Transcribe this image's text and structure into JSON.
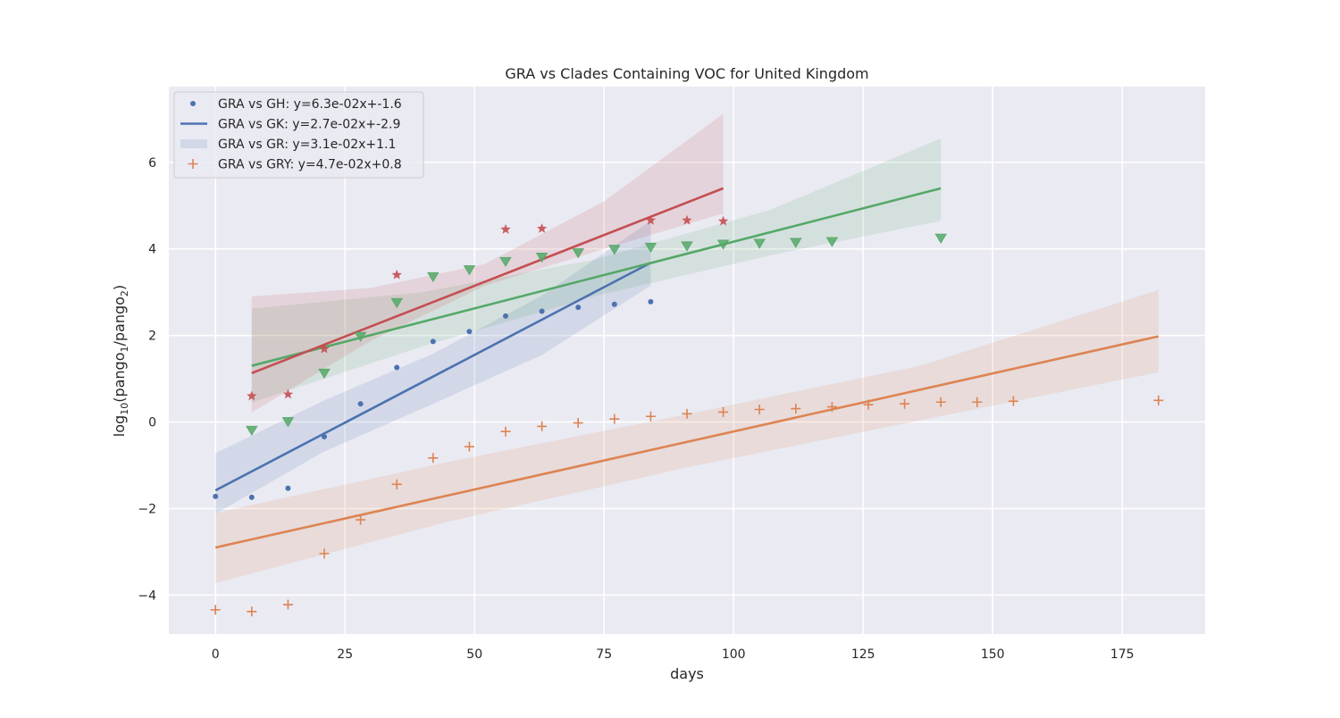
{
  "chart_data": {
    "type": "scatter",
    "title": "GRA vs Clades Containing VOC for United Kingdom",
    "xlabel": "days",
    "ylabel": {
      "prefix": "log",
      "sub": "10",
      "open": "(pango",
      "sub1": "1",
      "slash": "/pango",
      "sub2": "2",
      "close": ")"
    },
    "xlim": [
      -9,
      191
    ],
    "ylim": [
      -4.9,
      7.75
    ],
    "x_ticks": [
      0,
      25,
      50,
      75,
      100,
      125,
      150,
      175
    ],
    "y_ticks": [
      -4,
      -2,
      0,
      2,
      4,
      6
    ],
    "y_tick_labels": [
      "−4",
      "−2",
      "0",
      "2",
      "4",
      "6"
    ],
    "grid": true,
    "legend_position": "top-left",
    "legend": [
      {
        "label": "GRA vs GH: y=6.3e-02x+-1.6",
        "marker": "dot",
        "color": "#4c72b0"
      },
      {
        "label": "GRA vs GK: y=2.7e-02x+-2.9",
        "marker": "line",
        "color": "#4c72b0"
      },
      {
        "label": "GRA vs GR: y=3.1e-02x+1.1",
        "marker": "band",
        "color": "#4c72b0"
      },
      {
        "label": "GRA vs GRY: y=4.7e-02x+0.8",
        "marker": "plus",
        "color": "#dd8452"
      }
    ],
    "series": [
      {
        "color": "#4c72b0",
        "marker": "dot",
        "x": [
          0,
          7,
          14,
          21,
          28,
          35,
          42,
          49,
          56,
          63,
          70,
          77,
          84
        ],
        "y": [
          -1.72,
          -1.74,
          -1.53,
          -0.34,
          0.42,
          1.26,
          1.86,
          2.09,
          2.45,
          2.56,
          2.65,
          2.72,
          2.78
        ],
        "fit": {
          "x": [
            0,
            84
          ],
          "y": [
            -1.58,
            3.68
          ]
        },
        "band": {
          "x": [
            0,
            21,
            42,
            63,
            84
          ],
          "upper": [
            -0.72,
            0.5,
            1.58,
            2.92,
            4.65
          ],
          "lower": [
            -2.12,
            -0.68,
            0.42,
            1.55,
            3.15
          ]
        }
      },
      {
        "color": "#dd8452",
        "marker": "plus",
        "x": [
          0,
          7,
          14,
          21,
          28,
          35,
          42,
          49,
          56,
          63,
          70,
          77,
          84,
          91,
          98,
          105,
          112,
          119,
          126,
          133,
          140,
          147,
          154,
          182
        ],
        "y": [
          -4.34,
          -4.38,
          -4.22,
          -3.04,
          -2.26,
          -1.44,
          -0.83,
          -0.57,
          -0.22,
          -0.1,
          -0.02,
          0.07,
          0.13,
          0.19,
          0.23,
          0.29,
          0.31,
          0.35,
          0.4,
          0.42,
          0.46,
          0.46,
          0.48,
          0.5
        ],
        "fit": {
          "x": [
            0,
            182
          ],
          "y": [
            -2.9,
            1.98
          ]
        },
        "band": {
          "x": [
            0,
            45,
            91,
            136,
            182
          ],
          "upper": [
            -2.1,
            -0.92,
            0.18,
            1.3,
            3.05
          ],
          "lower": [
            -3.72,
            -2.3,
            -1.05,
            0.04,
            1.15
          ]
        }
      },
      {
        "color": "#55a868",
        "marker": "triangle",
        "x": [
          7,
          14,
          21,
          28,
          35,
          42,
          49,
          56,
          63,
          70,
          77,
          84,
          91,
          98,
          105,
          112,
          119,
          140
        ],
        "y": [
          -0.19,
          0.01,
          1.13,
          1.98,
          2.76,
          3.36,
          3.52,
          3.71,
          3.81,
          3.91,
          3.99,
          4.04,
          4.07,
          4.11,
          4.13,
          4.15,
          4.17,
          4.25
        ],
        "fit": {
          "x": [
            7,
            140
          ],
          "y": [
            1.3,
            5.4
          ]
        },
        "band": {
          "x": [
            7,
            40,
            73,
            107,
            140
          ],
          "upper": [
            2.62,
            3.0,
            3.75,
            4.9,
            6.55
          ],
          "lower": [
            0.45,
            1.75,
            2.9,
            3.85,
            4.65
          ]
        }
      },
      {
        "color": "#c44e52",
        "marker": "star",
        "x": [
          7,
          14,
          21,
          35,
          56,
          63,
          84,
          91,
          98
        ],
        "y": [
          0.6,
          0.64,
          1.69,
          3.4,
          4.45,
          4.47,
          4.66,
          4.66,
          4.64
        ],
        "fit": {
          "x": [
            7,
            98
          ],
          "y": [
            1.13,
            5.4
          ]
        },
        "band": {
          "x": [
            7,
            30,
            52,
            75,
            98
          ],
          "upper": [
            2.9,
            3.1,
            3.65,
            5.1,
            7.12
          ],
          "lower": [
            0.22,
            1.88,
            3.15,
            4.0,
            4.82
          ]
        }
      }
    ]
  }
}
